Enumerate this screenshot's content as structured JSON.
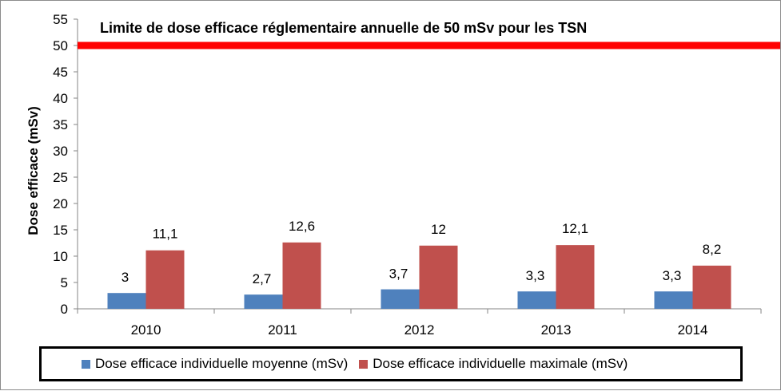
{
  "chart_data": {
    "type": "bar",
    "title": "",
    "xlabel": "",
    "ylabel": "Dose efficace  (mSv)",
    "ylim": [
      0,
      55
    ],
    "yticks": [
      0,
      5,
      10,
      15,
      20,
      25,
      30,
      35,
      40,
      45,
      50,
      55
    ],
    "categories": [
      "2010",
      "2011",
      "2012",
      "2013",
      "2014"
    ],
    "series": [
      {
        "name": "Dose efficace individuelle moyenne (mSv)",
        "values": [
          3,
          2.7,
          3.7,
          3.3,
          3.3
        ],
        "labels": [
          "3",
          "2,7",
          "3,7",
          "3,3",
          "3,3"
        ],
        "color": "#4f81bd"
      },
      {
        "name": "Dose efficace individuelle maximale (mSv)",
        "values": [
          11.1,
          12.6,
          12,
          12.1,
          8.2
        ],
        "labels": [
          "11,1",
          "12,6",
          "12",
          "12,1",
          "8,2"
        ],
        "color": "#c0504d"
      }
    ],
    "reference_line": {
      "value": 50,
      "label": "Limite de dose efficace réglementaire annuelle de 50 mSv pour  les TSN",
      "color": "#ff0000"
    },
    "grid": false,
    "legend_position": "bottom"
  }
}
